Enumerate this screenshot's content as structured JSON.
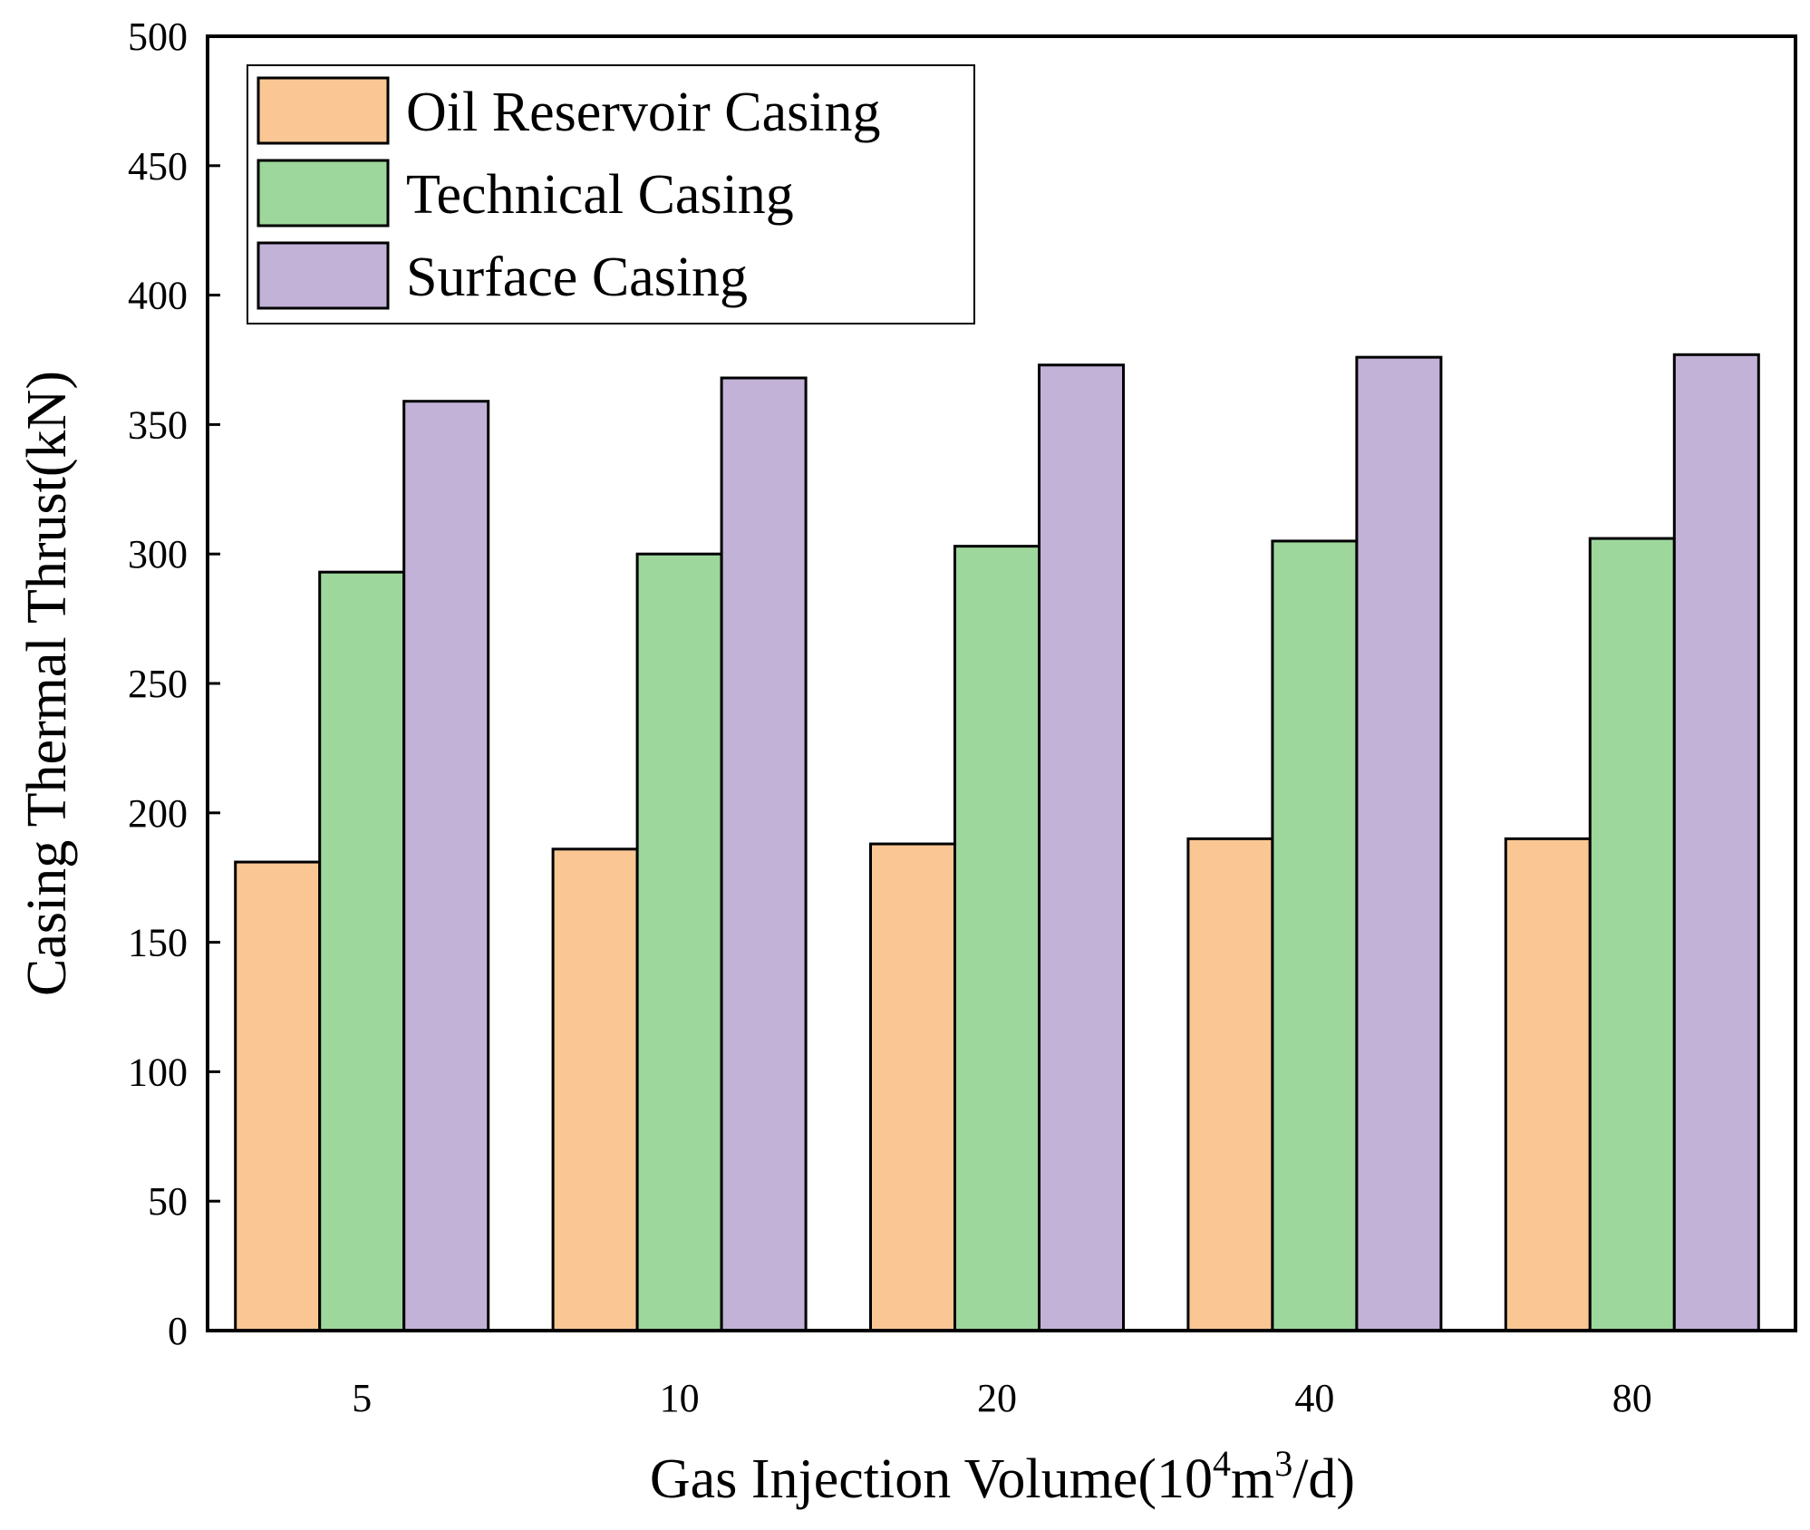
{
  "chart_data": {
    "type": "bar",
    "title": "",
    "xlabel": {
      "prefix": "Gas Injection Volume(10",
      "sup1": "4",
      "mid": "m",
      "sup2": "3",
      "suffix": "/d)"
    },
    "ylabel": "Casing Thermal Thrust(kN)",
    "ylim": [
      0,
      500
    ],
    "yticks": [
      0,
      50,
      100,
      150,
      200,
      250,
      300,
      350,
      400,
      450,
      500
    ],
    "categories": [
      "5",
      "10",
      "20",
      "40",
      "80"
    ],
    "series": [
      {
        "name": "Oil Reservoir Casing",
        "color": "#FAC794",
        "values": [
          181,
          186,
          188,
          190,
          190
        ]
      },
      {
        "name": "Technical Casing",
        "color": "#9DD79C",
        "values": [
          293,
          300,
          303,
          305,
          306
        ]
      },
      {
        "name": "Surface Casing",
        "color": "#C2B2D8",
        "values": [
          359,
          368,
          373,
          376,
          377
        ]
      }
    ],
    "legend_position": "top-left",
    "grid": false
  }
}
